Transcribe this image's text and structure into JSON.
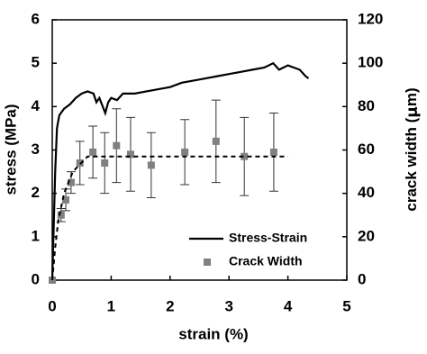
{
  "chart_data": {
    "type": "line",
    "xlabel": "strain (%)",
    "ylabel": "stress (MPa)",
    "y2label": {
      "text": "crack width (",
      "unit": "μ",
      "rest": "m)"
    },
    "xlim": [
      0,
      5
    ],
    "xticks": [
      0,
      1,
      2,
      3,
      4,
      5
    ],
    "ylim": [
      0,
      6
    ],
    "yticks": [
      0,
      1,
      2,
      3,
      4,
      5,
      6
    ],
    "y2lim": [
      0,
      120
    ],
    "y2ticks": [
      0,
      20,
      40,
      60,
      80,
      100,
      120
    ],
    "legend": "lower right",
    "series": [
      {
        "name": "Stress-Strain",
        "color": "#000000",
        "x": [
          0,
          0.02,
          0.05,
          0.08,
          0.12,
          0.2,
          0.3,
          0.4,
          0.5,
          0.6,
          0.7,
          0.75,
          0.8,
          0.9,
          0.95,
          1.0,
          1.1,
          1.2,
          1.4,
          1.6,
          1.8,
          2.0,
          2.2,
          2.4,
          2.6,
          2.8,
          3.0,
          3.2,
          3.4,
          3.6,
          3.75,
          3.85,
          4.0,
          4.1,
          4.2,
          4.3,
          4.35
        ],
        "values": [
          0,
          1,
          2.5,
          3.5,
          3.8,
          3.95,
          4.05,
          4.2,
          4.3,
          4.35,
          4.3,
          4.1,
          4.2,
          3.85,
          4.1,
          4.2,
          4.15,
          4.3,
          4.3,
          4.35,
          4.4,
          4.45,
          4.55,
          4.6,
          4.65,
          4.7,
          4.75,
          4.8,
          4.85,
          4.9,
          5.0,
          4.85,
          4.95,
          4.9,
          4.85,
          4.7,
          4.65
        ]
      },
      {
        "name": "Crack Width",
        "color": "#808080",
        "axis": "y2",
        "marker": "square",
        "x": [
          0,
          0.15,
          0.23,
          0.32,
          0.47,
          0.69,
          0.89,
          1.09,
          1.33,
          1.68,
          2.25,
          2.78,
          3.26,
          3.76
        ],
        "values": [
          0,
          30,
          37,
          45,
          54,
          59,
          54,
          62,
          58,
          53,
          59,
          64,
          57,
          59
        ],
        "errors": [
          0,
          3,
          5,
          5,
          10,
          12,
          14,
          17,
          17,
          15,
          15,
          19,
          18,
          18
        ]
      },
      {
        "color": "#000000",
        "axis": "y2",
        "dash": true,
        "x": [
          0,
          0.05,
          0.1,
          0.2,
          0.35,
          0.6,
          4.0
        ],
        "values": [
          0,
          15,
          27,
          40,
          50,
          57,
          57
        ]
      }
    ]
  }
}
